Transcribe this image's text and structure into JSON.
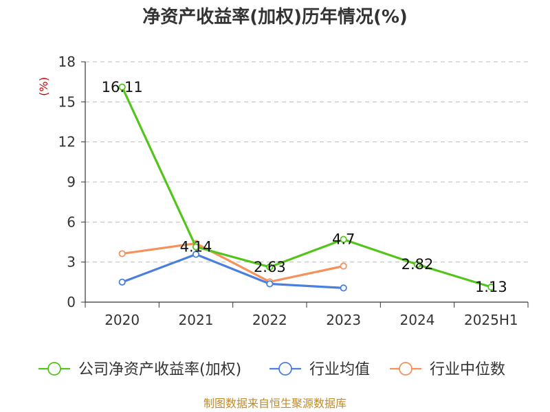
{
  "chart_data": {
    "type": "line",
    "title": "净资产收益率(加权)历年情况(%)",
    "y_unit_label": "(%)",
    "categories": [
      "2020",
      "2021",
      "2022",
      "2023",
      "2024",
      "2025H1"
    ],
    "ylim": [
      0,
      18
    ],
    "yticks": [
      0,
      3,
      6,
      9,
      12,
      15,
      18
    ],
    "grid": true,
    "legend_position": "bottom",
    "series": [
      {
        "name": "公司净资产收益率(加权)",
        "color": "#52c41a",
        "values": [
          16.11,
          4.14,
          2.63,
          4.7,
          2.82,
          1.13
        ],
        "labels": [
          "16.11",
          "4.14",
          "2.63",
          "4.7",
          "2.82",
          "1.13"
        ]
      },
      {
        "name": "行业均值",
        "color": "#4a7fdb",
        "values": [
          1.5,
          3.58,
          1.37,
          1.06,
          null,
          null
        ]
      },
      {
        "name": "行业中位数",
        "color": "#f5915a",
        "values": [
          3.63,
          4.4,
          1.52,
          2.7,
          null,
          null
        ]
      }
    ]
  },
  "footer": {
    "source": "制图数据来自恒生聚源数据库"
  }
}
